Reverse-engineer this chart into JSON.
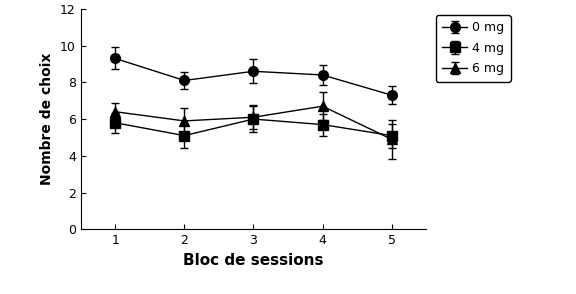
{
  "x": [
    1,
    2,
    3,
    4,
    5
  ],
  "series_order": [
    "0 mg",
    "4 mg",
    "6 mg"
  ],
  "series": {
    "0 mg": {
      "y": [
        9.3,
        8.1,
        8.6,
        8.4,
        7.3
      ],
      "yerr": [
        0.6,
        0.45,
        0.65,
        0.55,
        0.5
      ],
      "marker": "o",
      "color": "#000000",
      "label": "0 mg",
      "markersize": 7
    },
    "4 mg": {
      "y": [
        5.8,
        5.1,
        6.0,
        5.7,
        5.1
      ],
      "yerr": [
        0.55,
        0.65,
        0.7,
        0.6,
        0.65
      ],
      "marker": "s",
      "color": "#000000",
      "label": "4 mg",
      "markersize": 7
    },
    "6 mg": {
      "y": [
        6.4,
        5.9,
        6.1,
        6.7,
        4.9
      ],
      "yerr": [
        0.45,
        0.7,
        0.65,
        0.75,
        1.05
      ],
      "marker": "^",
      "color": "#000000",
      "label": "6 mg",
      "markersize": 7
    }
  },
  "xlabel": "Bloc de sessions",
  "ylabel": "Nombre de choix",
  "ylim": [
    0,
    12
  ],
  "yticks": [
    0,
    2,
    4,
    6,
    8,
    10,
    12
  ],
  "xlim": [
    0.5,
    5.5
  ],
  "xticks": [
    1,
    2,
    3,
    4,
    5
  ],
  "background_color": "#ffffff",
  "figsize": [
    5.76,
    2.94
  ],
  "dpi": 100
}
